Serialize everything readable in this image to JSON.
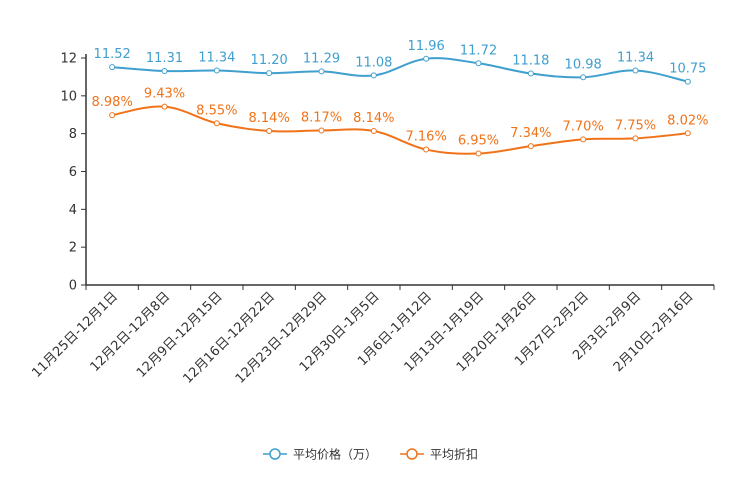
{
  "chart_data": {
    "type": "line",
    "categories": [
      "11月25日-12月1日",
      "12月2日-12月8日",
      "12月9日-12月15日",
      "12月16日-12月22日",
      "12月23日-12月29日",
      "12月30日-1月5日",
      "1月6日-1月12日",
      "1月13日-1月19日",
      "1月20日-1月26日",
      "1月27日-2月2日",
      "2月3日-2月9日",
      "2月10日-2月16日"
    ],
    "series": [
      {
        "name": "平均价格（万）",
        "color": "#3f9fce",
        "values": [
          11.52,
          11.31,
          11.34,
          11.2,
          11.29,
          11.08,
          11.96,
          11.72,
          11.18,
          10.98,
          11.34,
          10.75
        ],
        "labels": [
          "11.52",
          "11.31",
          "11.34",
          "11.20",
          "11.29",
          "11.08",
          "11.96",
          "11.72",
          "11.18",
          "10.98",
          "11.34",
          "10.75"
        ]
      },
      {
        "name": "平均折扣",
        "color": "#f0731a",
        "values": [
          8.98,
          9.43,
          8.55,
          8.14,
          8.17,
          8.14,
          7.16,
          6.95,
          7.34,
          7.7,
          7.75,
          8.02
        ],
        "labels": [
          "8.98%",
          "9.43%",
          "8.55%",
          "8.14%",
          "8.17%",
          "8.14%",
          "7.16%",
          "6.95%",
          "7.34%",
          "7.70%",
          "7.75%",
          "8.02%"
        ]
      }
    ],
    "yticks": [
      "0",
      "2",
      "4",
      "6",
      "8",
      "10",
      "12"
    ],
    "ylim": [
      0,
      12
    ],
    "title": "",
    "xlabel": "",
    "ylabel": "",
    "legend_position": "bottom-center"
  }
}
